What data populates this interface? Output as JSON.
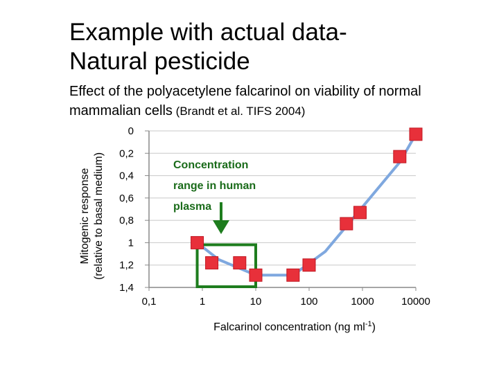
{
  "slide": {
    "title_line1": "Example with actual data-",
    "title_line2": "Natural pesticide",
    "subtitle_main": "Effect of the polyacetylene falcarinol on viability of normal mammalian cells",
    "subtitle_citation": "(Brandt et al. TIFS 2004)"
  },
  "chart_data": {
    "type": "line",
    "title": "",
    "xlabel": "Falcarinol concentration (ng ml-1)",
    "xlabel_base": "Falcarinol concentration (ng ml",
    "xlabel_sup": "-1",
    "xlabel_end": ")",
    "ylabel_line1": "Mitogenic response",
    "ylabel_line2": "(relative to basal medium)",
    "x_scale": "log",
    "xlim": [
      0.1,
      10000
    ],
    "ylim": [
      0,
      1.4
    ],
    "y_inverted": true,
    "x_ticks": [
      0.1,
      1,
      10,
      100,
      1000,
      10000
    ],
    "x_tick_labels": [
      "0,1",
      "1",
      "10",
      "100",
      "1000",
      "10000"
    ],
    "y_ticks": [
      0,
      0.2,
      0.4,
      0.6,
      0.8,
      1,
      1.2,
      1.4
    ],
    "y_tick_labels": [
      "0",
      "0,2",
      "0,4",
      "0,6",
      "0,8",
      "1",
      "1,2",
      "1,4"
    ],
    "points": [
      {
        "x": 0.8,
        "y": 1.0
      },
      {
        "x": 1.5,
        "y": 1.18
      },
      {
        "x": 5,
        "y": 1.18
      },
      {
        "x": 10,
        "y": 1.29
      },
      {
        "x": 50,
        "y": 1.29
      },
      {
        "x": 100,
        "y": 1.2
      },
      {
        "x": 500,
        "y": 0.83
      },
      {
        "x": 900,
        "y": 0.73
      },
      {
        "x": 5000,
        "y": 0.23
      },
      {
        "x": 10000,
        "y": 0.03
      }
    ],
    "curve": [
      {
        "x": 0.8,
        "y": 1.0
      },
      {
        "x": 2,
        "y": 1.15
      },
      {
        "x": 10,
        "y": 1.29
      },
      {
        "x": 50,
        "y": 1.29
      },
      {
        "x": 200,
        "y": 1.08
      },
      {
        "x": 1000,
        "y": 0.68
      },
      {
        "x": 5000,
        "y": 0.28
      },
      {
        "x": 10000,
        "y": 0.03
      }
    ],
    "annotation_lines": [
      "Concentration",
      "range in human",
      "plasma"
    ],
    "highlight_range": {
      "x_from": 0.8,
      "x_to": 10,
      "y_from": 1.0,
      "y_to": 1.4
    },
    "colors": {
      "marker": "#e8303a",
      "curve": "#7fa8df",
      "highlight": "#1e7d1e",
      "axis": "#888888"
    }
  }
}
